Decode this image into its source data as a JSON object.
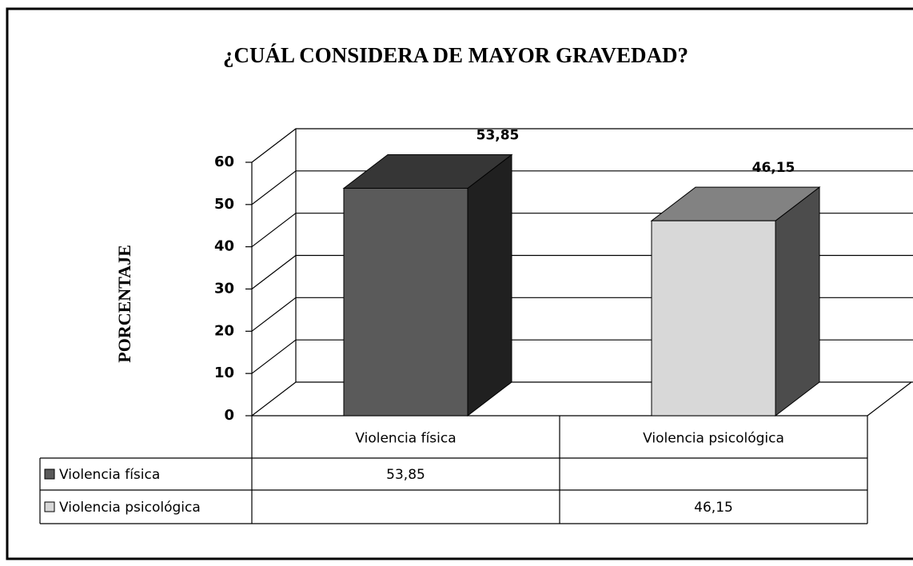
{
  "chart_data": {
    "type": "bar",
    "title": "¿CUÁL CONSIDERA DE MAYOR GRAVEDAD?",
    "ylabel": "PORCENTAJE",
    "categories": [
      "Violencia física",
      "Violencia psicológica"
    ],
    "series": [
      {
        "name": "Violencia física",
        "color": "#5a5a5a",
        "values": [
          53.85,
          null
        ],
        "value_labels": [
          "53,85",
          null
        ]
      },
      {
        "name": "Violencia psicológica",
        "color": "#d8d8d8",
        "values": [
          null,
          46.15
        ],
        "value_labels": [
          null,
          "46,15"
        ]
      }
    ],
    "ylim": [
      0,
      60
    ],
    "yticks": [
      0,
      10,
      20,
      30,
      40,
      50,
      60
    ],
    "grid": true
  }
}
